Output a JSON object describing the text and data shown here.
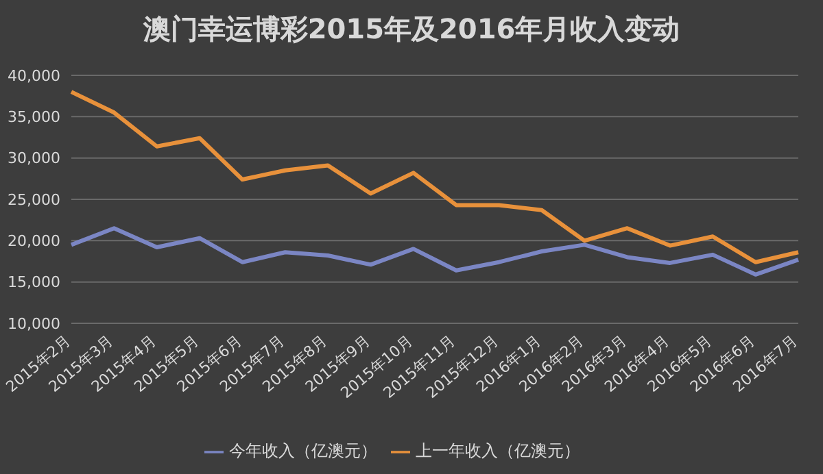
{
  "chart_data": {
    "type": "line",
    "title": "澳门幸运博彩2015年及2016年月收入变动",
    "categories": [
      "2015年2月",
      "2015年3月",
      "2015年4月",
      "2015年5月",
      "2015年6月",
      "2015年7月",
      "2015年8月",
      "2015年9月",
      "2015年10月",
      "2015年11月",
      "2015年12月",
      "2016年1月",
      "2016年2月",
      "2016年3月",
      "2016年4月",
      "2016年5月",
      "2016年6月",
      "2016年7月"
    ],
    "series": [
      {
        "name": "今年收入（亿澳元）",
        "color": "#7b86c4",
        "values": [
          19500,
          21500,
          19200,
          20300,
          17400,
          18600,
          18200,
          17100,
          19000,
          16400,
          17400,
          18700,
          19500,
          18000,
          17300,
          18300,
          15900,
          17700
        ]
      },
      {
        "name": "上一年收入（亿澳元）",
        "color": "#e8913b",
        "values": [
          38000,
          35500,
          31400,
          32400,
          27400,
          28500,
          29100,
          25700,
          28200,
          24300,
          24300,
          23700,
          20000,
          21500,
          19400,
          20500,
          17400,
          18600
        ]
      }
    ],
    "ylim": [
      10000,
      40000
    ],
    "yticks": [
      {
        "value": 10000,
        "label": "10,000"
      },
      {
        "value": 15000,
        "label": "15,000"
      },
      {
        "value": 20000,
        "label": "20,000"
      },
      {
        "value": 25000,
        "label": "25,000"
      },
      {
        "value": 30000,
        "label": "30,000"
      },
      {
        "value": 35000,
        "label": "35,000"
      },
      {
        "value": 40000,
        "label": "40,000"
      }
    ],
    "grid": "y",
    "legend": "bottom",
    "marker": "none",
    "line_style": "solid"
  }
}
